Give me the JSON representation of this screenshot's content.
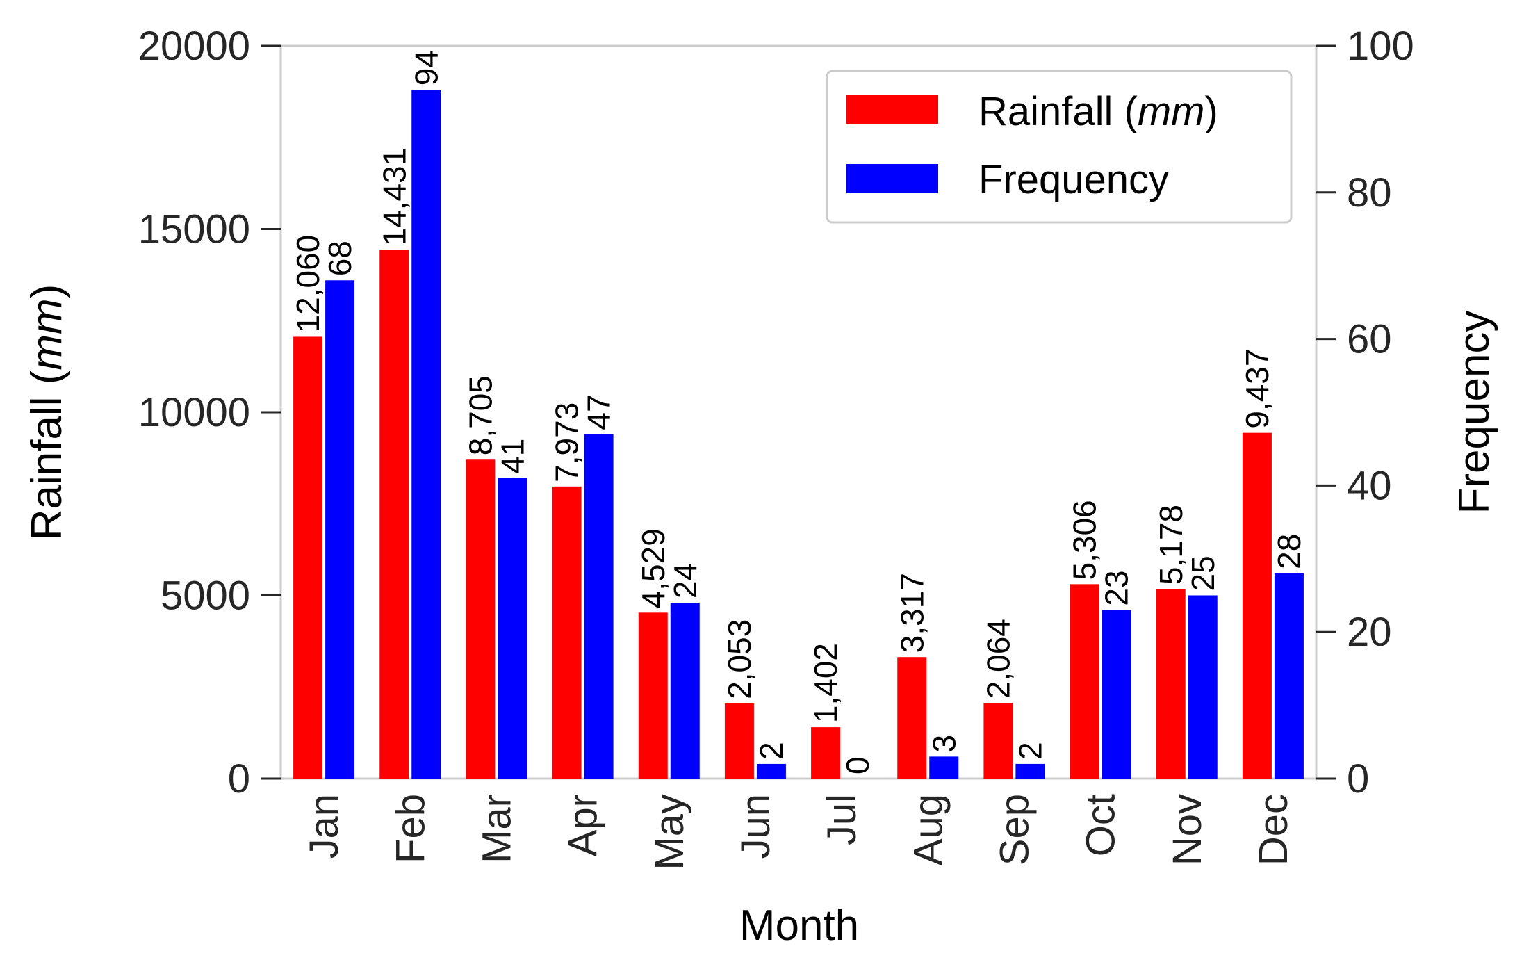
{
  "chart_data": {
    "type": "bar",
    "title": "",
    "xlabel": "Month",
    "ylabel_left": {
      "text": "Rainfall (",
      "unit": "mm",
      "suffix": ")"
    },
    "ylabel_right": "Frequency",
    "categories": [
      "Jan",
      "Feb",
      "Mar",
      "Apr",
      "May",
      "Jun",
      "Jul",
      "Aug",
      "Sep",
      "Oct",
      "Nov",
      "Dec"
    ],
    "series": [
      {
        "name": "Rainfall (mm)",
        "axis": "left",
        "color": "#ff0000",
        "values": [
          12060,
          14431,
          8705,
          7973,
          4529,
          2053,
          1402,
          3317,
          2064,
          5306,
          5178,
          9437
        ],
        "labels": [
          "12,060",
          "14,431",
          "8,705",
          "7,973",
          "4,529",
          "2,053",
          "1,402",
          "3,317",
          "2,064",
          "5,306",
          "5,178",
          "9,437"
        ]
      },
      {
        "name": "Frequency",
        "axis": "right",
        "color": "#0000ff",
        "values": [
          68,
          94,
          41,
          47,
          24,
          2,
          0,
          3,
          2,
          23,
          25,
          28
        ],
        "labels": [
          "68",
          "94",
          "41",
          "47",
          "24",
          "2",
          "0",
          "3",
          "2",
          "23",
          "25",
          "28"
        ]
      }
    ],
    "ylim_left": [
      0,
      20000
    ],
    "ylim_right": [
      0,
      100
    ],
    "yticks_left": [
      "0",
      "5000",
      "10000",
      "15000",
      "20000"
    ],
    "yticks_right": [
      "0",
      "20",
      "40",
      "60",
      "80",
      "100"
    ],
    "legend": {
      "position": "top-right",
      "entries": [
        {
          "text": "Rainfall (",
          "unit": "mm",
          "suffix": ")",
          "color": "#ff0000"
        },
        {
          "text": "Frequency",
          "color": "#0000ff"
        }
      ]
    },
    "grid": false
  }
}
